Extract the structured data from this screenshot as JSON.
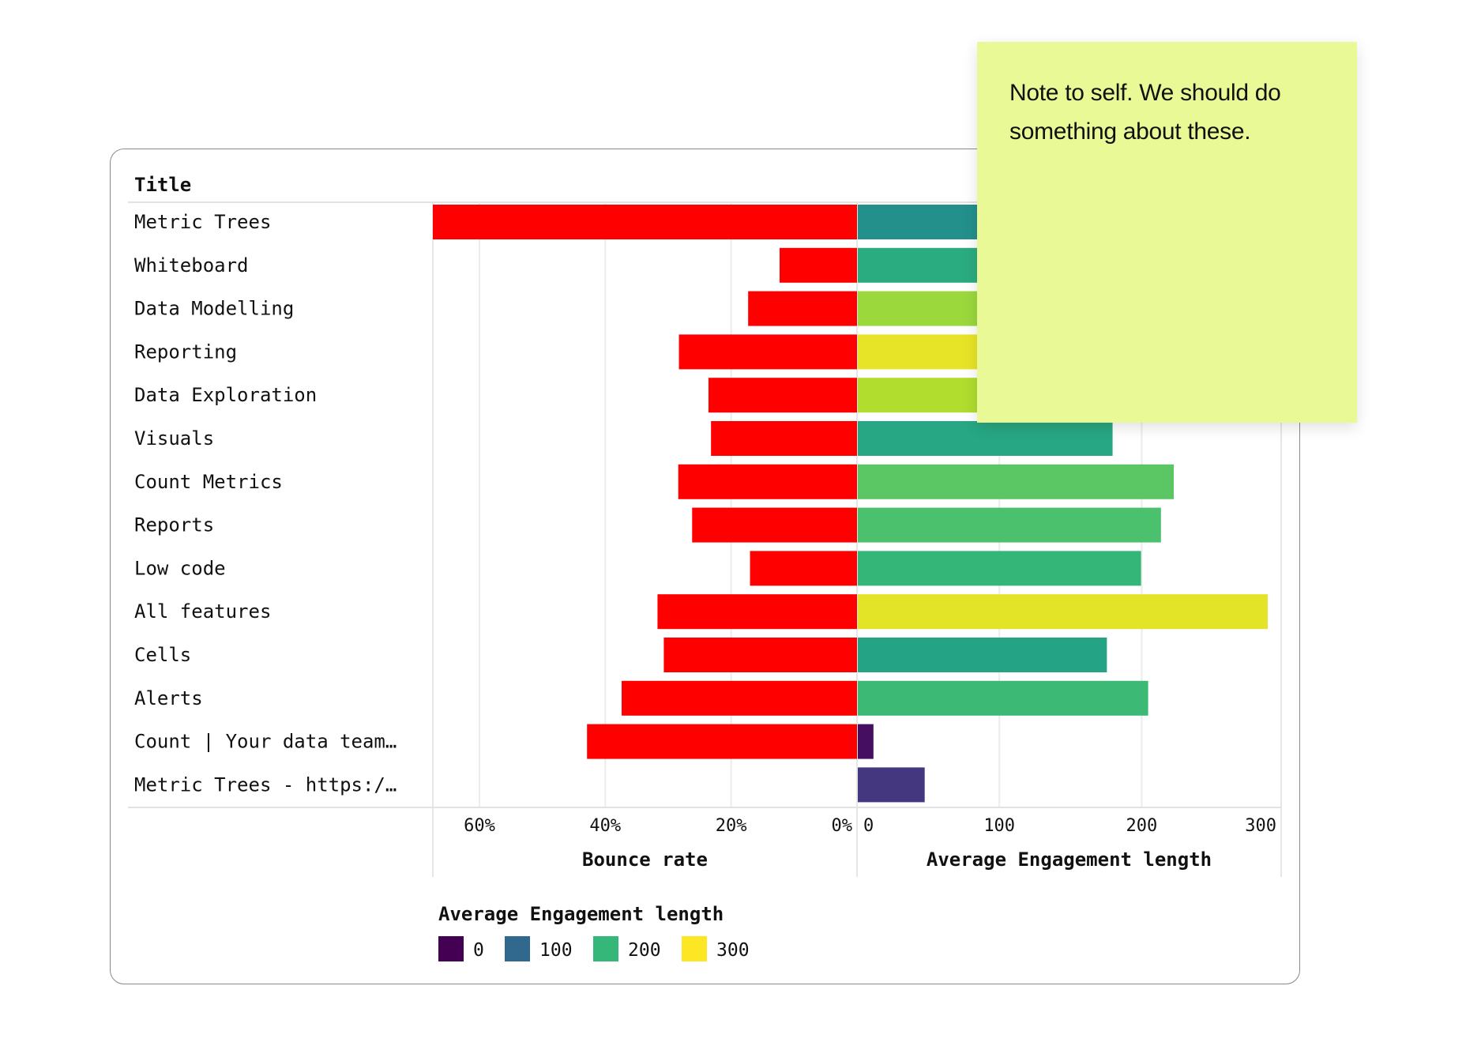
{
  "chart_data": {
    "type": "bar",
    "layout": "diverging horizontal bars",
    "column_header": "Title",
    "categories": [
      "Metric Trees",
      "Whiteboard",
      "Data Modelling",
      "Reporting",
      "Data Exploration",
      "Visuals",
      "Count Metrics",
      "Reports",
      "Low code",
      "All features",
      "Cells",
      "Alerts",
      "Count | Your data team…",
      "Metric Trees - https:/…"
    ],
    "series": [
      {
        "name": "Bounce rate",
        "side": "left",
        "unit": "%",
        "color": "#ff0000",
        "values": [
          67.4,
          12.3,
          17.3,
          28.3,
          23.6,
          23.2,
          28.4,
          26.2,
          17.0,
          31.7,
          30.7,
          37.4,
          42.9,
          null
        ]
      },
      {
        "name": "Average Engagement length",
        "side": "right",
        "color_scale": "viridis",
        "values": [
          150,
          185,
          255,
          290,
          265,
          179,
          222,
          213,
          199,
          288,
          175,
          204,
          11,
          47
        ]
      }
    ],
    "left_axis": {
      "label": "Bounce rate",
      "ticks": [
        "60%",
        "40%",
        "20%",
        "0%"
      ],
      "tick_values": [
        60,
        40,
        20,
        0
      ],
      "range": [
        67.4,
        0
      ]
    },
    "right_axis": {
      "label": "Average Engagement length",
      "ticks": [
        "0",
        "100",
        "200",
        "300"
      ],
      "tick_values": [
        0,
        100,
        200,
        300
      ],
      "range": [
        0,
        298
      ]
    },
    "grid": true,
    "legend": {
      "title": "Average Engagement length",
      "placement": "bottom-left",
      "items": [
        {
          "label": "0",
          "color": "#440154"
        },
        {
          "label": "100",
          "color": "#31688e"
        },
        {
          "label": "200",
          "color": "#35b779"
        },
        {
          "label": "300",
          "color": "#fde725"
        }
      ]
    }
  },
  "sticky_note": {
    "text": "Note to self. We should do something about these.",
    "color": "#e8f996"
  }
}
